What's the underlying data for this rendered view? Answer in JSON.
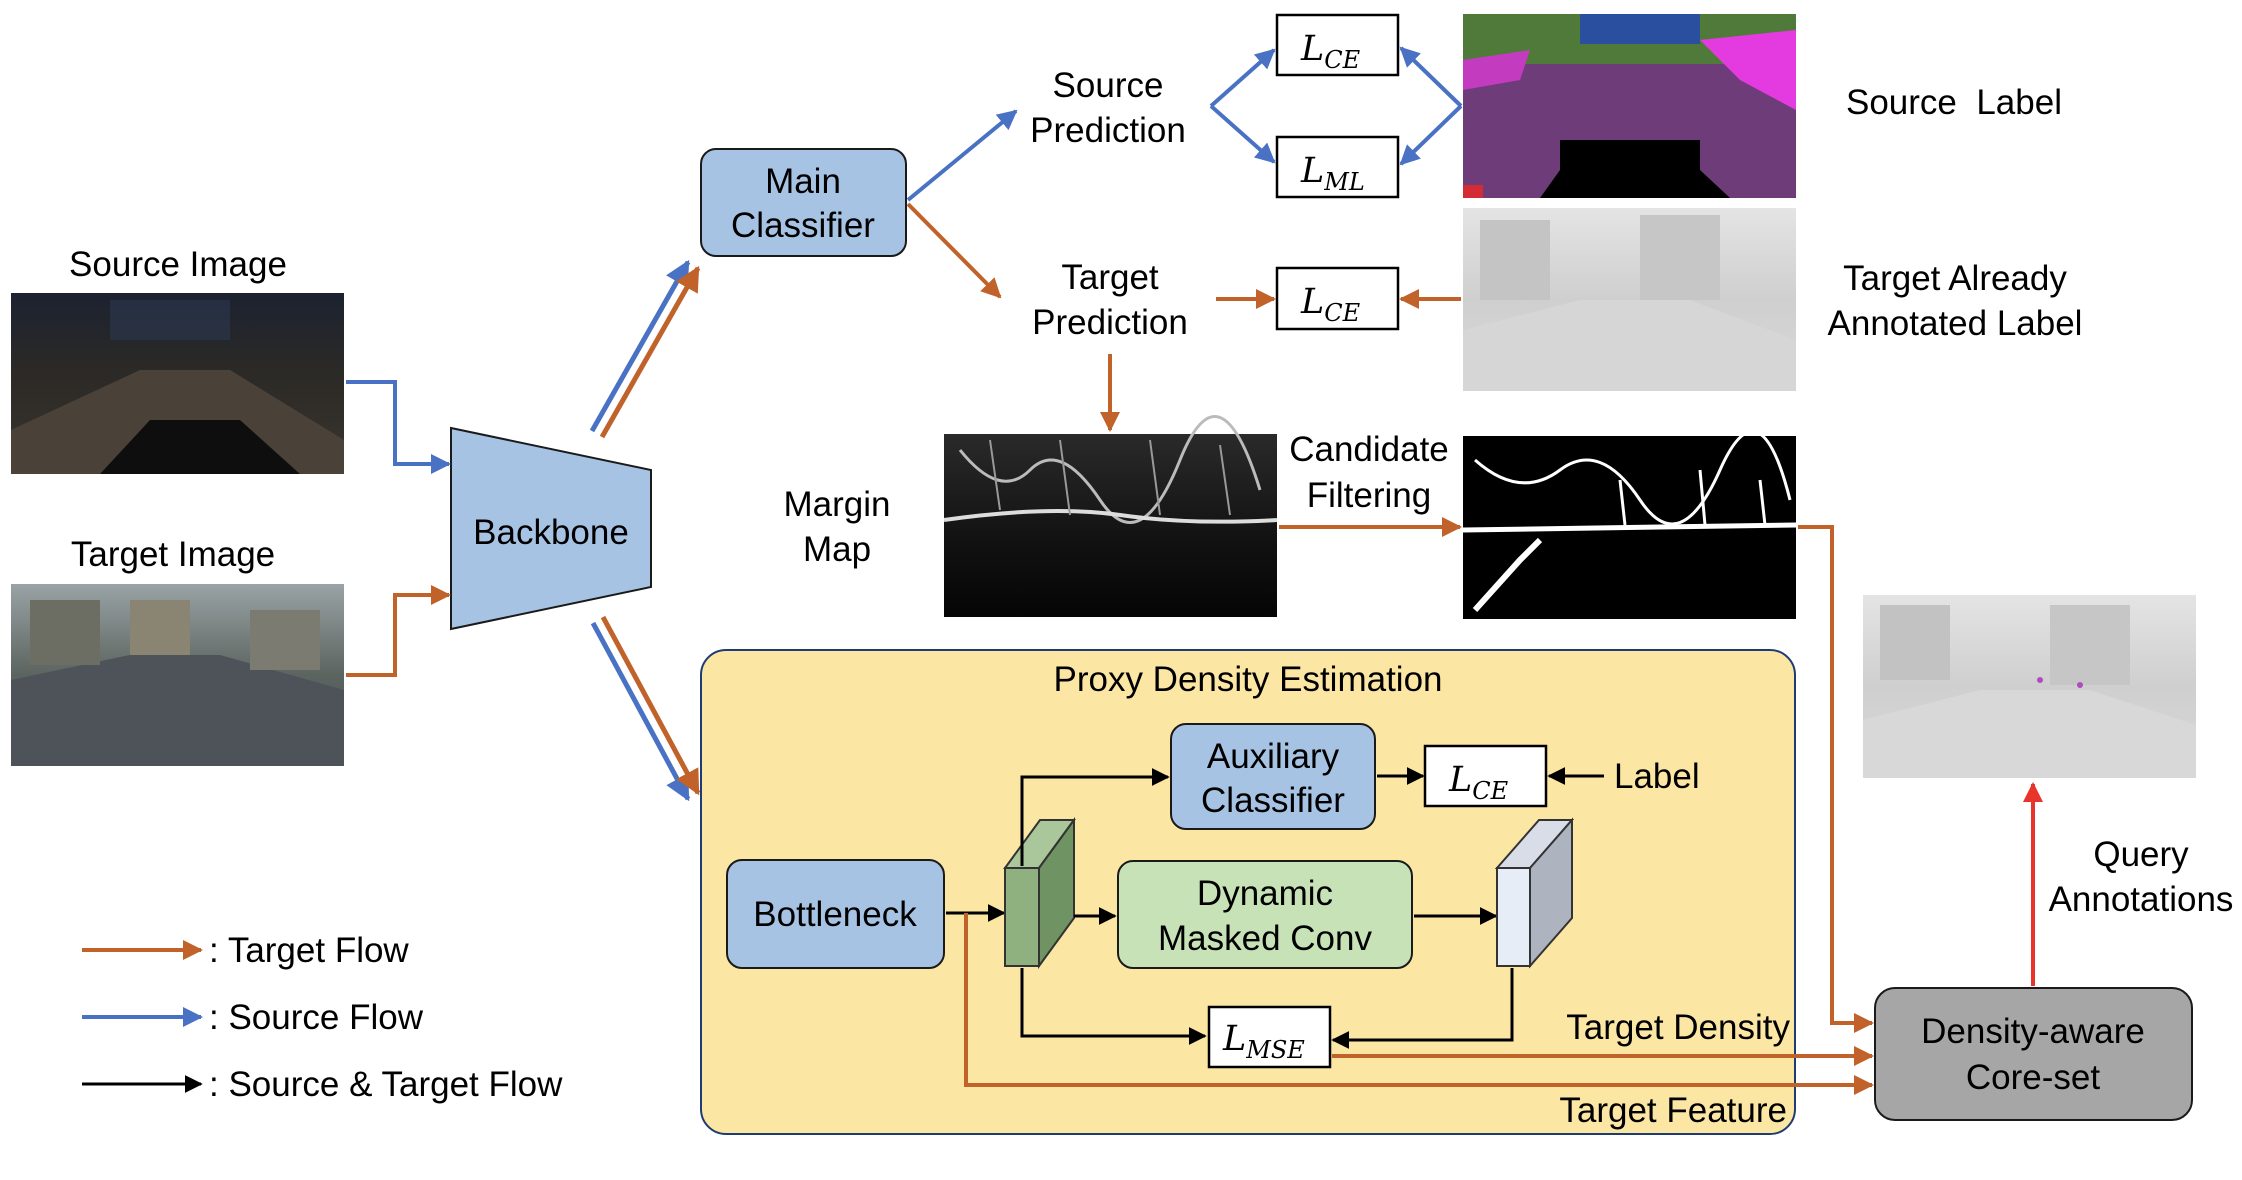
{
  "inputs": {
    "source_image_label": "Source Image",
    "target_image_label": "Target Image"
  },
  "nodes": {
    "backbone": "Backbone",
    "main_classifier": [
      "Main",
      "Classifier"
    ],
    "source_prediction": [
      "Source",
      "Prediction"
    ],
    "target_prediction": [
      "Target",
      "Prediction"
    ],
    "margin_map": [
      "Margin",
      "Map"
    ],
    "candidate_filtering": [
      "Candidate",
      "Filtering"
    ],
    "source_label": "Source  Label",
    "target_annotated_label": [
      "Target Already",
      "Annotated Label"
    ],
    "proxy_density_title": "Proxy Density Estimation",
    "bottleneck": "Bottleneck",
    "auxiliary_classifier": [
      "Auxiliary",
      "Classifier"
    ],
    "dynamic_masked_conv": [
      "Dynamic",
      "Masked Conv"
    ],
    "label": "Label",
    "target_density": "Target Density",
    "target_feature": "Target Feature",
    "density_core_set": [
      "Density-aware",
      "Core-set"
    ],
    "query_annotations": [
      "Query",
      "Annotations"
    ]
  },
  "losses": {
    "ce_base": "L",
    "ce_sub": "CE",
    "ml_base": "L",
    "ml_sub": "ML",
    "mse_base": "L",
    "mse_sub": "MSE"
  },
  "legend": {
    "target_flow": ": Target Flow",
    "source_flow": ": Source Flow",
    "both_flow": ": Source & Target Flow"
  },
  "colors": {
    "target_flow": "#c0622a",
    "source_flow": "#4a72c4",
    "both_flow": "#000000",
    "query": "#e8352b",
    "blue_box": "#a7c3e4",
    "green_box": "#c8e2b8",
    "proxy_bg": "#fbe6a4",
    "gray_box": "#a6a6a6"
  }
}
